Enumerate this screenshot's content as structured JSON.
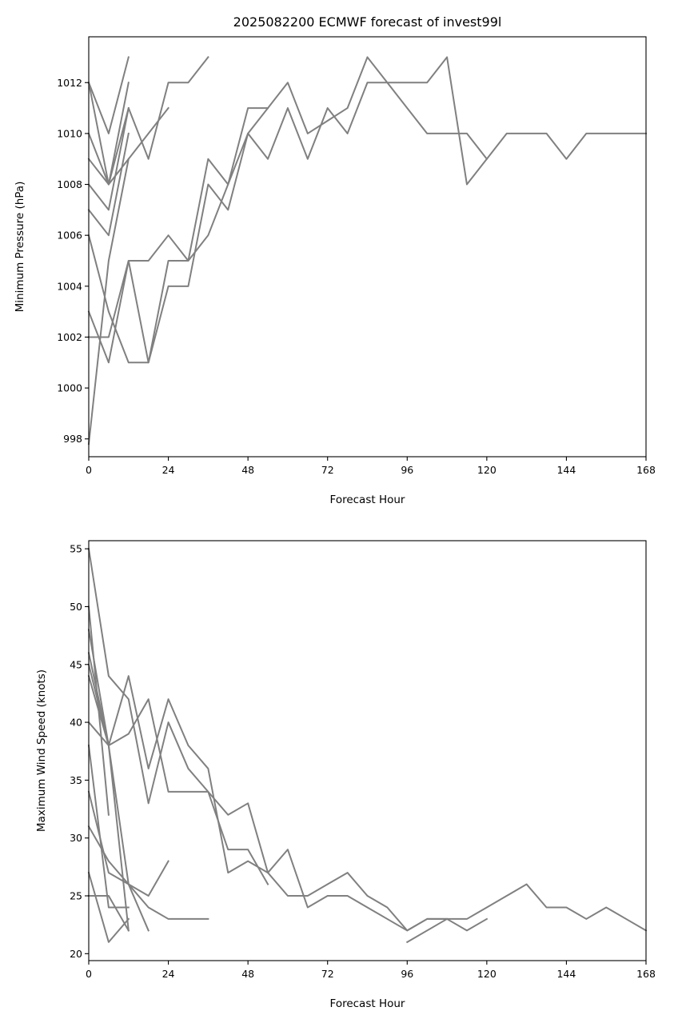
{
  "figure_title": "2025082200 ECMWF forecast of invest99l",
  "colors": {
    "series": "#808080",
    "axes": "#000000",
    "background": "#ffffff"
  },
  "chart_data": [
    {
      "type": "line",
      "title": "2025082200 ECMWF forecast of invest99l",
      "xlabel": "Forecast Hour",
      "ylabel": "Minimum Pressure (hPa)",
      "xlim": [
        0,
        168
      ],
      "ylim": [
        997.3,
        1013.8
      ],
      "xticks": [
        0,
        24,
        48,
        72,
        96,
        120,
        144,
        168
      ],
      "yticks": [
        998,
        1000,
        1002,
        1004,
        1006,
        1008,
        1010,
        1012
      ],
      "grid": false,
      "series": [
        {
          "x": [
            0,
            6,
            12
          ],
          "y": [
            1012,
            1010,
            1013
          ]
        },
        {
          "x": [
            0,
            6,
            12
          ],
          "y": [
            1010,
            1008,
            1012
          ]
        },
        {
          "x": [
            0,
            6,
            12,
            18,
            24
          ],
          "y": [
            1009,
            1008,
            1009,
            1010,
            1011
          ]
        },
        {
          "x": [
            0,
            6,
            12,
            18,
            24,
            30,
            36
          ],
          "y": [
            1012,
            1008,
            1011,
            1009,
            1012,
            1012,
            1013
          ]
        },
        {
          "x": [
            0,
            6,
            12
          ],
          "y": [
            1008,
            1007,
            1011
          ]
        },
        {
          "x": [
            0,
            6,
            12
          ],
          "y": [
            1007,
            1006,
            1010
          ]
        },
        {
          "x": [
            0,
            6,
            12
          ],
          "y": [
            997.8,
            1005,
            1009
          ]
        },
        {
          "x": [
            0,
            6,
            12,
            18,
            24,
            30,
            36,
            42,
            48,
            54,
            60,
            66,
            72,
            78,
            84,
            90,
            96,
            102,
            108,
            114,
            120,
            126,
            132,
            138,
            144,
            150,
            156,
            162,
            168
          ],
          "y": [
            1003,
            1001,
            1005,
            1005,
            1006,
            1005,
            1006,
            1008,
            1010,
            1011,
            1012,
            1010,
            1010.5,
            1011,
            1013,
            1012,
            1012,
            1012,
            1013,
            1008,
            1009,
            1010,
            1010,
            1010,
            1009,
            1010,
            1010,
            1010,
            1010
          ]
        },
        {
          "x": [
            0,
            6,
            12,
            18,
            24,
            30,
            36,
            42,
            48,
            54,
            60,
            66,
            72,
            78,
            84,
            90,
            96,
            102,
            108,
            114,
            120
          ],
          "y": [
            1006,
            1003,
            1001,
            1001,
            1004,
            1004,
            1008,
            1007,
            1010,
            1009,
            1011,
            1009,
            1011,
            1010,
            1012,
            1012,
            1011,
            1010,
            1010,
            1010,
            1009
          ]
        },
        {
          "x": [
            0,
            6,
            12,
            18,
            24,
            30,
            36,
            42,
            48,
            54
          ],
          "y": [
            1002,
            1002,
            1005,
            1001,
            1005,
            1005,
            1009,
            1008,
            1011,
            1011
          ]
        }
      ]
    },
    {
      "type": "line",
      "title": "",
      "xlabel": "Forecast Hour",
      "ylabel": "Maximum Wind Speed (knots)",
      "xlim": [
        0,
        168
      ],
      "ylim": [
        19.4,
        55.7
      ],
      "xticks": [
        0,
        24,
        48,
        72,
        96,
        120,
        144,
        168
      ],
      "yticks": [
        20,
        25,
        30,
        35,
        40,
        45,
        50,
        55
      ],
      "grid": false,
      "series": [
        {
          "x": [
            0,
            6
          ],
          "y": [
            50,
            32
          ]
        },
        {
          "x": [
            0,
            6
          ],
          "y": [
            46,
            38
          ]
        },
        {
          "x": [
            0,
            6,
            12
          ],
          "y": [
            45,
            38,
            22
          ]
        },
        {
          "x": [
            0,
            6,
            12
          ],
          "y": [
            38,
            24,
            24
          ]
        },
        {
          "x": [
            0,
            6,
            12
          ],
          "y": [
            25,
            25,
            22
          ]
        },
        {
          "x": [
            0,
            6,
            12
          ],
          "y": [
            27,
            21,
            23
          ]
        },
        {
          "x": [
            0,
            6,
            12,
            18,
            24
          ],
          "y": [
            44,
            38,
            26,
            25,
            28
          ]
        },
        {
          "x": [
            0,
            6,
            12,
            18
          ],
          "y": [
            34,
            27,
            26,
            22
          ]
        },
        {
          "x": [
            0,
            6,
            12,
            18,
            24,
            30,
            36
          ],
          "y": [
            31,
            28,
            26,
            24,
            23,
            23,
            23
          ]
        },
        {
          "x": [
            0,
            6,
            12,
            18,
            24,
            30,
            36,
            42,
            48,
            54
          ],
          "y": [
            55,
            44,
            42,
            33,
            40,
            36,
            34,
            29,
            29,
            26
          ]
        },
        {
          "x": [
            0,
            6,
            12,
            18,
            24,
            30,
            36,
            42,
            48,
            54,
            60,
            66,
            72,
            78,
            84,
            90,
            96,
            102,
            108,
            114,
            120
          ],
          "y": [
            40,
            38,
            39,
            42,
            34,
            34,
            34,
            32,
            33,
            27,
            25,
            25,
            26,
            27,
            25,
            24,
            22,
            23,
            23,
            22,
            23
          ]
        },
        {
          "x": [
            0,
            6,
            12,
            18,
            24,
            30,
            36,
            42,
            48,
            54,
            60,
            66,
            72,
            78,
            84,
            90,
            96,
            102,
            108,
            114,
            120,
            126,
            132,
            138,
            144,
            150,
            156,
            162,
            168
          ],
          "y": [
            48,
            38,
            44,
            36,
            42,
            38,
            36,
            27,
            28,
            27,
            29,
            24,
            25,
            25,
            24,
            23,
            22,
            23,
            23,
            23,
            24,
            25,
            26,
            24,
            24,
            23,
            24,
            23,
            22
          ]
        },
        {
          "x": [
            96,
            108
          ],
          "y": [
            21,
            23
          ]
        }
      ]
    }
  ]
}
